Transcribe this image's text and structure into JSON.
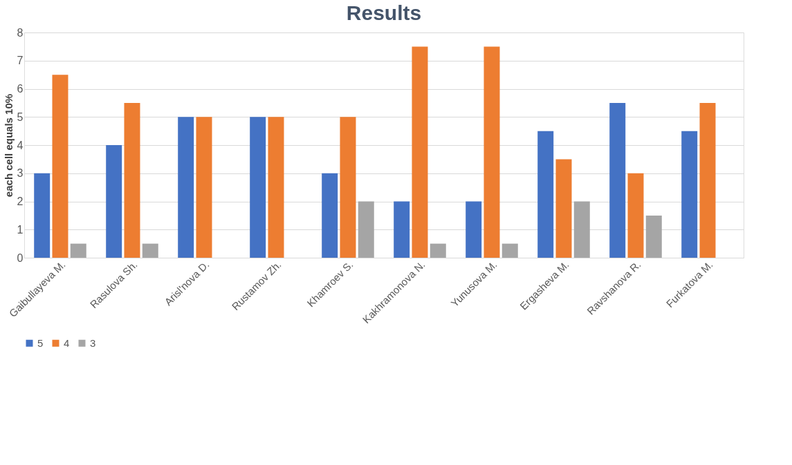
{
  "chart_data": {
    "type": "bar",
    "title": "Results",
    "ylabel": "each cell equals 10%",
    "categories": [
      "Gaibullayeva M.",
      "Rasulova Sh.",
      "Arisl'nova D.",
      "Rustamov Zh.",
      "Khamroev S.",
      "Kakhramonova N.",
      "Yunusova M.",
      "Ergasheva M.",
      "Ravshanova R.",
      "Furkatova M."
    ],
    "series": [
      {
        "name": "5",
        "color": "#4472c4",
        "values": [
          3,
          4,
          5,
          5,
          3,
          2,
          2,
          4.5,
          5.5,
          4.5
        ]
      },
      {
        "name": "4",
        "color": "#ed7d31",
        "values": [
          6.5,
          5.5,
          5,
          5,
          5,
          7.5,
          7.5,
          3.5,
          3,
          5.5
        ]
      },
      {
        "name": "3",
        "color": "#a5a5a5",
        "values": [
          0.5,
          0.5,
          null,
          null,
          2,
          0.5,
          0.5,
          2,
          1.5,
          null
        ]
      }
    ],
    "ylim": [
      0,
      8
    ],
    "yticks": [
      0,
      1,
      2,
      3,
      4,
      5,
      6,
      7,
      8
    ],
    "grid": "y",
    "legend": "bottom"
  }
}
